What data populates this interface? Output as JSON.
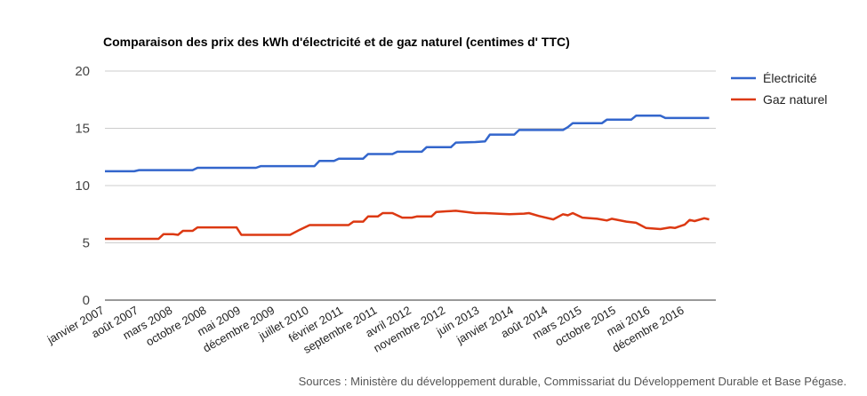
{
  "chart_data": {
    "type": "line",
    "title": "Comparaison des prix des kWh d'électricité et de gaz naturel (centimes d' TTC)",
    "xlabel": "",
    "ylabel": "",
    "ylim": [
      0,
      20
    ],
    "yticks": [
      0,
      5,
      10,
      15,
      20
    ],
    "x_tick_labels": [
      "janvier 2007",
      "août 2007",
      "mars 2008",
      "octobre 2008",
      "mai 2009",
      "décembre 2009",
      "juillet 2010",
      "février 2011",
      "septembre 2011",
      "avril 2012",
      "novembre 2012",
      "juin 2013",
      "janvier 2014",
      "août 2014",
      "mars 2015",
      "octobre 2015",
      "mai 2016",
      "décembre 2016"
    ],
    "grid": true,
    "legend_position": "right",
    "series": [
      {
        "name": "Électricité",
        "color": "#3366cc",
        "points": [
          [
            "2007-01",
            11.25
          ],
          [
            "2007-07",
            11.25
          ],
          [
            "2007-08",
            11.35
          ],
          [
            "2008-07",
            11.35
          ],
          [
            "2008-08",
            11.55
          ],
          [
            "2009-08",
            11.55
          ],
          [
            "2009-09",
            11.7
          ],
          [
            "2010-08",
            11.7
          ],
          [
            "2010-09",
            12.15
          ],
          [
            "2010-12",
            12.15
          ],
          [
            "2011-01",
            12.35
          ],
          [
            "2011-06",
            12.35
          ],
          [
            "2011-07",
            12.75
          ],
          [
            "2011-12",
            12.75
          ],
          [
            "2012-01",
            12.95
          ],
          [
            "2012-06",
            12.95
          ],
          [
            "2012-07",
            13.35
          ],
          [
            "2012-12",
            13.35
          ],
          [
            "2013-01",
            13.75
          ],
          [
            "2013-05",
            13.8
          ],
          [
            "2013-07",
            13.85
          ],
          [
            "2013-08",
            14.45
          ],
          [
            "2014-01",
            14.45
          ],
          [
            "2014-02",
            14.85
          ],
          [
            "2014-11",
            14.85
          ],
          [
            "2014-12",
            15.1
          ],
          [
            "2015-01",
            15.45
          ],
          [
            "2015-07",
            15.45
          ],
          [
            "2015-08",
            15.75
          ],
          [
            "2016-01",
            15.75
          ],
          [
            "2016-02",
            16.1
          ],
          [
            "2016-07",
            16.1
          ],
          [
            "2016-08",
            15.9
          ],
          [
            "2017-05",
            15.9
          ]
        ]
      },
      {
        "name": "Gaz naturel",
        "color": "#dc3912",
        "points": [
          [
            "2007-01",
            5.35
          ],
          [
            "2007-12",
            5.35
          ],
          [
            "2008-01",
            5.75
          ],
          [
            "2008-03",
            5.75
          ],
          [
            "2008-04",
            5.7
          ],
          [
            "2008-05",
            6.05
          ],
          [
            "2008-07",
            6.05
          ],
          [
            "2008-08",
            6.35
          ],
          [
            "2009-04",
            6.35
          ],
          [
            "2009-05",
            5.7
          ],
          [
            "2010-03",
            5.7
          ],
          [
            "2010-05",
            6.15
          ],
          [
            "2010-07",
            6.55
          ],
          [
            "2011-03",
            6.55
          ],
          [
            "2011-04",
            6.85
          ],
          [
            "2011-06",
            6.85
          ],
          [
            "2011-07",
            7.3
          ],
          [
            "2011-09",
            7.3
          ],
          [
            "2011-10",
            7.6
          ],
          [
            "2011-12",
            7.6
          ],
          [
            "2012-02",
            7.2
          ],
          [
            "2012-04",
            7.2
          ],
          [
            "2012-05",
            7.3
          ],
          [
            "2012-08",
            7.3
          ],
          [
            "2012-09",
            7.7
          ],
          [
            "2012-11",
            7.75
          ],
          [
            "2013-01",
            7.8
          ],
          [
            "2013-05",
            7.6
          ],
          [
            "2013-07",
            7.6
          ],
          [
            "2013-12",
            7.5
          ],
          [
            "2014-03",
            7.55
          ],
          [
            "2014-04",
            7.6
          ],
          [
            "2014-06",
            7.35
          ],
          [
            "2014-09",
            7.05
          ],
          [
            "2014-11",
            7.5
          ],
          [
            "2014-12",
            7.4
          ],
          [
            "2015-01",
            7.6
          ],
          [
            "2015-03",
            7.2
          ],
          [
            "2015-06",
            7.1
          ],
          [
            "2015-08",
            6.95
          ],
          [
            "2015-09",
            7.1
          ],
          [
            "2015-12",
            6.85
          ],
          [
            "2016-02",
            6.75
          ],
          [
            "2016-04",
            6.3
          ],
          [
            "2016-07",
            6.2
          ],
          [
            "2016-09",
            6.35
          ],
          [
            "2016-10",
            6.3
          ],
          [
            "2016-12",
            6.6
          ],
          [
            "2017-01",
            7.0
          ],
          [
            "2017-02",
            6.9
          ],
          [
            "2017-04",
            7.15
          ],
          [
            "2017-05",
            7.05
          ]
        ]
      }
    ],
    "source": "Sources : Ministère du développement durable, Commissariat du Développement Durable et Base Pégase."
  }
}
